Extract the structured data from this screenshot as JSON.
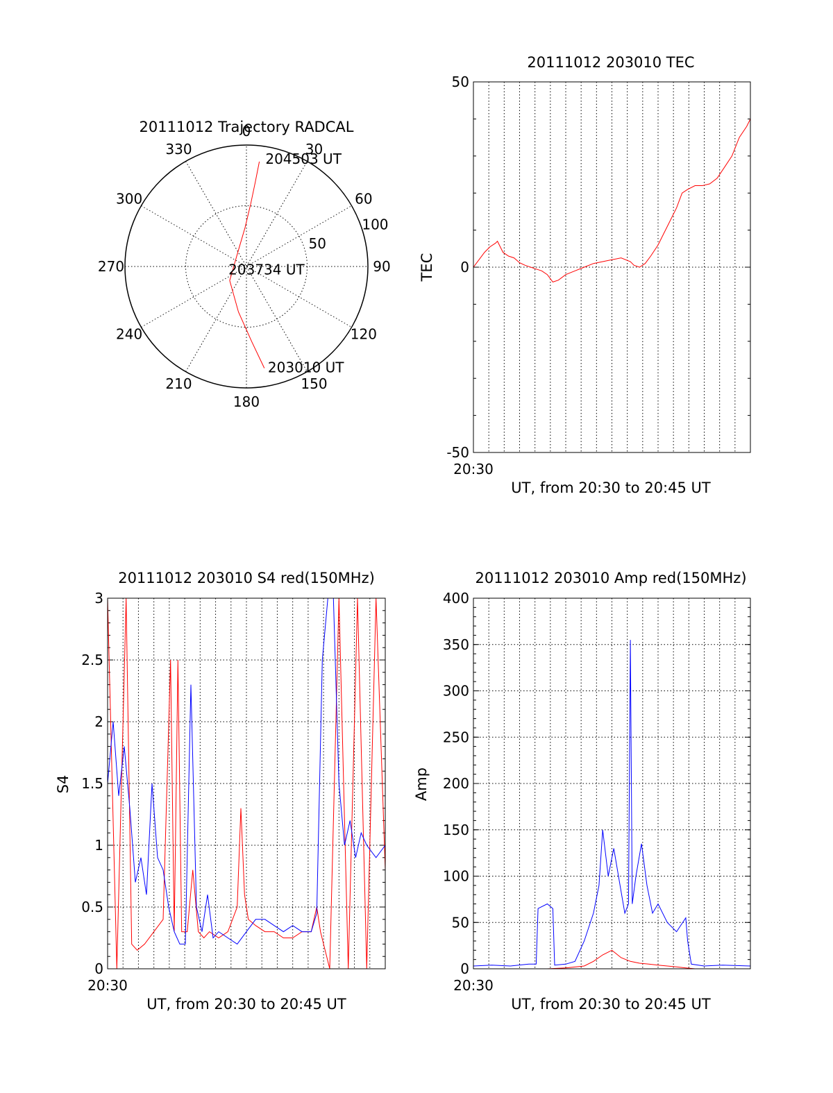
{
  "chart_data": [
    {
      "type": "polar",
      "title": "20111012 Trajectory RADCAL",
      "angle_labels": [
        "0",
        "30",
        "60",
        "90",
        "120",
        "150",
        "180",
        "210",
        "240",
        "270",
        "300",
        "330"
      ],
      "radius_labels": [
        "50",
        "100"
      ],
      "rlim": [
        0,
        100
      ],
      "grid": true,
      "color": "#ff0000",
      "trajectory": [
        {
          "azimuth": 170,
          "elevation": 15
        },
        {
          "azimuth": 176,
          "elevation": 38
        },
        {
          "azimuth": 190,
          "elevation": 62
        },
        {
          "azimuth": 230,
          "elevation": 82
        },
        {
          "azimuth": 330,
          "elevation": 86
        },
        {
          "azimuth": 358,
          "elevation": 68
        },
        {
          "azimuth": 4,
          "elevation": 48
        },
        {
          "azimuth": 6,
          "elevation": 30
        },
        {
          "azimuth": 7,
          "elevation": 13
        }
      ],
      "annotations": [
        {
          "text": "204503 UT",
          "azimuth": 10,
          "elevation": 10
        },
        {
          "text": "203734 UT",
          "azimuth": 260,
          "elevation": 85
        },
        {
          "text": "203010 UT",
          "azimuth": 168,
          "elevation": 15
        }
      ]
    },
    {
      "type": "line",
      "title": "20111012 203010 TEC",
      "ylabel": "TEC",
      "xlabel": "UT, from 20:30 to 20:45 UT",
      "x_tick_label": "20:30",
      "ylim": [
        -50,
        50
      ],
      "y_ticks": [
        "-50",
        "0",
        "50"
      ],
      "xlim": [
        0,
        15
      ],
      "grid": true,
      "series": [
        {
          "color": "#ff0000",
          "x": [
            0,
            0.3,
            0.6,
            0.9,
            1.2,
            1.3,
            1.6,
            1.9,
            2.2,
            2.5,
            2.8,
            3.1,
            3.4,
            3.7,
            4.0,
            4.3,
            4.6,
            5.0,
            5.5,
            6.0,
            6.5,
            7.0,
            7.5,
            8.0,
            8.5,
            8.7,
            9.0,
            9.3,
            9.6,
            10.0,
            10.3,
            10.6,
            11.0,
            11.3,
            11.6,
            12.0,
            12.4,
            12.8,
            13.2,
            13.6,
            14.0,
            14.4,
            14.8,
            15.0
          ],
          "y": [
            0,
            2,
            4,
            5.5,
            6.5,
            7,
            4,
            3,
            2.5,
            1.2,
            0.5,
            0,
            -0.5,
            -1,
            -2,
            -4,
            -3.5,
            -2,
            -1,
            0,
            1,
            1.5,
            2,
            2.5,
            1.5,
            0.5,
            0,
            1,
            3,
            6,
            9,
            12,
            16,
            20,
            21,
            22,
            22,
            22.5,
            24,
            27,
            30,
            35,
            38,
            40
          ]
        }
      ]
    },
    {
      "type": "line",
      "title": "20111012 203010 S4 red(150MHz)",
      "ylabel": "S4",
      "xlabel": "UT, from 20:30 to 20:45 UT",
      "x_tick_label": "20:30",
      "ylim": [
        0,
        3
      ],
      "y_ticks": [
        "0",
        "0.5",
        "1",
        "1.5",
        "2",
        "2.5",
        "3"
      ],
      "xlim": [
        0,
        15
      ],
      "grid": true,
      "series": [
        {
          "color": "#ff0000",
          "x": [
            0,
            0.5,
            1.0,
            1.3,
            1.6,
            2.0,
            2.5,
            3.0,
            3.4,
            3.6,
            3.8,
            4.0,
            4.3,
            4.6,
            4.9,
            5.2,
            5.5,
            6.0,
            6.5,
            7.0,
            7.2,
            7.4,
            7.6,
            8.0,
            8.5,
            9.0,
            9.5,
            10.0,
            10.5,
            11.0,
            11.3,
            11.5,
            12.0,
            12.5,
            13.0,
            13.5,
            14.0,
            14.5,
            15.0
          ],
          "y": [
            3,
            0,
            3,
            0.2,
            0.15,
            0.2,
            0.3,
            0.4,
            2.5,
            0.3,
            2.5,
            0.3,
            0.3,
            0.8,
            0.3,
            0.25,
            0.3,
            0.25,
            0.3,
            0.5,
            1.3,
            0.6,
            0.4,
            0.35,
            0.3,
            0.3,
            0.25,
            0.25,
            0.3,
            0.3,
            0.5,
            0.3,
            0,
            3,
            0,
            3,
            0,
            3,
            0.8
          ]
        },
        {
          "color": "#0000ff",
          "x": [
            0,
            0.3,
            0.6,
            0.9,
            1.2,
            1.5,
            1.8,
            2.1,
            2.4,
            2.7,
            3.0,
            3.3,
            3.6,
            3.9,
            4.2,
            4.5,
            4.8,
            5.1,
            5.4,
            5.7,
            6.0,
            6.5,
            7.0,
            7.5,
            8.0,
            8.5,
            9.0,
            9.5,
            10.0,
            10.5,
            11.0,
            11.3,
            11.6,
            11.9,
            12.2,
            12.5,
            12.8,
            13.1,
            13.4,
            13.7,
            14.0,
            14.5,
            15.0
          ],
          "y": [
            1.5,
            2,
            1.4,
            1.8,
            1.3,
            0.7,
            0.9,
            0.6,
            1.5,
            0.9,
            0.8,
            0.5,
            0.3,
            0.2,
            0.2,
            2.3,
            0.5,
            0.3,
            0.6,
            0.25,
            0.3,
            0.25,
            0.2,
            0.3,
            0.4,
            0.4,
            0.35,
            0.3,
            0.35,
            0.3,
            0.3,
            0.45,
            2.5,
            3,
            3,
            1.5,
            1.0,
            1.2,
            0.9,
            1.1,
            1.0,
            0.9,
            1.0
          ]
        }
      ]
    },
    {
      "type": "line",
      "title": "20111012 203010 Amp red(150MHz)",
      "ylabel": "Amp",
      "xlabel": "UT, from 20:30 to 20:45 UT",
      "x_tick_label": "20:30",
      "ylim": [
        0,
        400
      ],
      "y_ticks": [
        "0",
        "50",
        "100",
        "150",
        "200",
        "250",
        "300",
        "350",
        "400"
      ],
      "xlim": [
        0,
        15
      ],
      "grid": true,
      "series": [
        {
          "color": "#0000ff",
          "x": [
            0,
            1,
            2,
            3,
            3.4,
            3.5,
            4.0,
            4.3,
            4.4,
            5.0,
            5.5,
            6.0,
            6.5,
            6.8,
            7.0,
            7.3,
            7.6,
            7.9,
            8.2,
            8.4,
            8.5,
            8.6,
            8.8,
            9.1,
            9.4,
            9.7,
            10.0,
            10.5,
            11.0,
            11.5,
            11.6,
            11.8,
            12.5,
            13.5,
            15.0
          ],
          "y": [
            3,
            4,
            3,
            5,
            5,
            65,
            70,
            65,
            4,
            5,
            8,
            30,
            60,
            90,
            150,
            100,
            130,
            95,
            60,
            70,
            355,
            70,
            100,
            135,
            90,
            60,
            70,
            50,
            40,
            55,
            30,
            5,
            3,
            4,
            3
          ]
        },
        {
          "color": "#ff0000",
          "x": [
            0,
            4,
            5,
            6,
            6.5,
            7,
            7.5,
            8,
            8.5,
            9,
            9.5,
            10,
            10.5,
            11,
            11.5,
            12,
            15
          ],
          "y": [
            0,
            0,
            1,
            3,
            8,
            15,
            20,
            12,
            8,
            6,
            5,
            4,
            3,
            2,
            1,
            0,
            0
          ]
        }
      ]
    }
  ]
}
